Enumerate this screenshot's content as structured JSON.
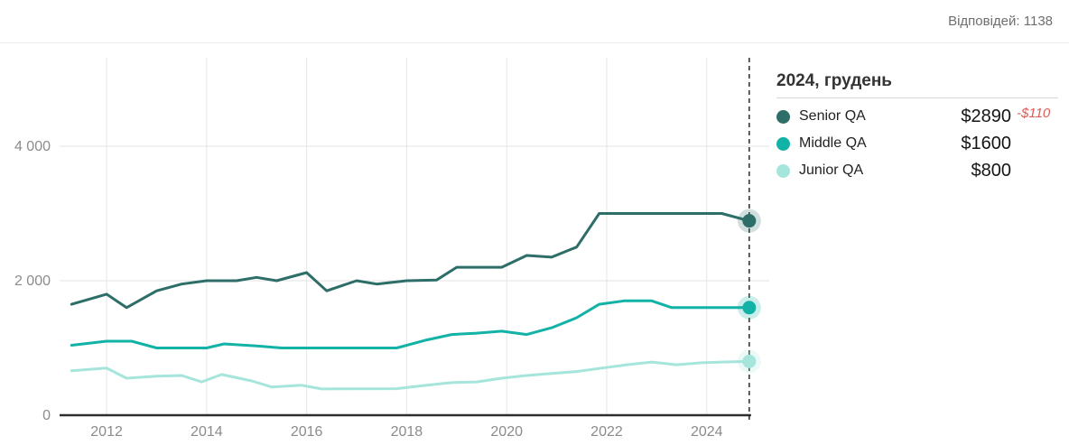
{
  "header": {
    "responses": "Відповідей: 1138"
  },
  "legend": {
    "title": "2024, грудень",
    "items": [
      {
        "label": "Senior QA",
        "value": "$2890",
        "delta": "-$110"
      },
      {
        "label": "Middle QA",
        "value": "$1600",
        "delta": ""
      },
      {
        "label": "Junior QA",
        "value": "$800",
        "delta": ""
      }
    ]
  },
  "colors": {
    "senior": "#2d6e68",
    "middle": "#12b2a6",
    "junior": "#a5e5dc",
    "delta_red": "#df5b58",
    "axis_line": "#2e2e2e",
    "grid": "#e6e6e6",
    "tick_text": "#8b8b8b",
    "marker_dash": "#1a1a1a"
  },
  "chart_data": {
    "type": "line",
    "title": "",
    "xlabel": "",
    "ylabel": "",
    "grid": true,
    "legend_position": "right",
    "x_domain": [
      2011.06,
      2025.25
    ],
    "y_domain": [
      0,
      5315
    ],
    "x_ticks": [
      {
        "v": 2012,
        "label": "2012"
      },
      {
        "v": 2014,
        "label": "2014"
      },
      {
        "v": 2016,
        "label": "2016"
      },
      {
        "v": 2018,
        "label": "2018"
      },
      {
        "v": 2020,
        "label": "2020"
      },
      {
        "v": 2022,
        "label": "2022"
      },
      {
        "v": 2024,
        "label": "2024"
      }
    ],
    "y_ticks": [
      {
        "v": 0,
        "label": "0"
      },
      {
        "v": 2000,
        "label": "2 000"
      },
      {
        "v": 4000,
        "label": "4 000"
      }
    ],
    "marker_line_x": 2024.85,
    "series": [
      {
        "name": "Senior QA",
        "color": "#2d6e68",
        "end_value": 2890,
        "points": [
          [
            2011.3,
            1650
          ],
          [
            2012.0,
            1800
          ],
          [
            2012.4,
            1600
          ],
          [
            2013.0,
            1850
          ],
          [
            2013.5,
            1950
          ],
          [
            2014.0,
            2000
          ],
          [
            2014.6,
            2000
          ],
          [
            2015.0,
            2050
          ],
          [
            2015.4,
            2000
          ],
          [
            2016.0,
            2120
          ],
          [
            2016.4,
            1850
          ],
          [
            2017.0,
            2000
          ],
          [
            2017.4,
            1950
          ],
          [
            2018.0,
            2000
          ],
          [
            2018.6,
            2010
          ],
          [
            2019.0,
            2200
          ],
          [
            2019.9,
            2200
          ],
          [
            2020.4,
            2375
          ],
          [
            2020.9,
            2350
          ],
          [
            2021.4,
            2500
          ],
          [
            2021.85,
            3000
          ],
          [
            2024.3,
            3000
          ],
          [
            2024.85,
            2890
          ]
        ]
      },
      {
        "name": "Middle QA",
        "color": "#12b2a6",
        "end_value": 1600,
        "points": [
          [
            2011.3,
            1040
          ],
          [
            2012.0,
            1100
          ],
          [
            2012.5,
            1100
          ],
          [
            2013.0,
            1000
          ],
          [
            2014.0,
            1000
          ],
          [
            2014.35,
            1060
          ],
          [
            2015.0,
            1030
          ],
          [
            2015.5,
            1000
          ],
          [
            2017.8,
            1000
          ],
          [
            2018.4,
            1120
          ],
          [
            2018.9,
            1200
          ],
          [
            2019.4,
            1220
          ],
          [
            2019.9,
            1250
          ],
          [
            2020.4,
            1200
          ],
          [
            2020.9,
            1300
          ],
          [
            2021.4,
            1450
          ],
          [
            2021.85,
            1650
          ],
          [
            2022.35,
            1700
          ],
          [
            2022.9,
            1700
          ],
          [
            2023.3,
            1600
          ],
          [
            2024.85,
            1600
          ]
        ]
      },
      {
        "name": "Junior QA",
        "color": "#a5e5dc",
        "end_value": 800,
        "points": [
          [
            2011.3,
            660
          ],
          [
            2012.0,
            700
          ],
          [
            2012.4,
            550
          ],
          [
            2013.0,
            580
          ],
          [
            2013.5,
            590
          ],
          [
            2013.9,
            495
          ],
          [
            2014.3,
            605
          ],
          [
            2014.9,
            510
          ],
          [
            2015.3,
            420
          ],
          [
            2015.9,
            445
          ],
          [
            2016.3,
            390
          ],
          [
            2017.8,
            395
          ],
          [
            2018.4,
            445
          ],
          [
            2018.9,
            485
          ],
          [
            2019.4,
            495
          ],
          [
            2019.9,
            550
          ],
          [
            2020.4,
            590
          ],
          [
            2020.9,
            620
          ],
          [
            2021.4,
            650
          ],
          [
            2021.9,
            700
          ],
          [
            2022.4,
            750
          ],
          [
            2022.9,
            790
          ],
          [
            2023.4,
            750
          ],
          [
            2023.9,
            780
          ],
          [
            2024.3,
            790
          ],
          [
            2024.85,
            800
          ]
        ]
      }
    ]
  }
}
